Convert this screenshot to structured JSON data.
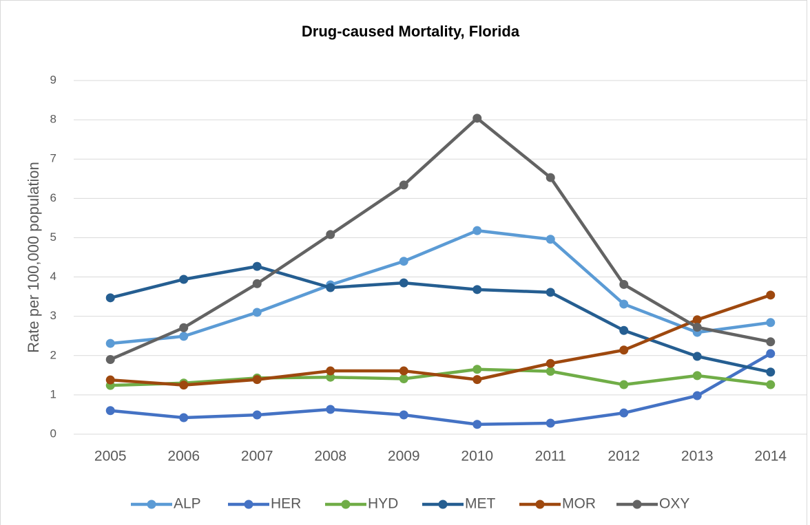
{
  "chart_data": {
    "type": "line",
    "title": "Drug-caused Mortality, Florida",
    "y_label": "Rate per 100,000 population",
    "categories": [
      "2005",
      "2006",
      "2007",
      "2008",
      "2009",
      "2010",
      "2011",
      "2012",
      "2013",
      "2014"
    ],
    "series": [
      {
        "name": "ALP",
        "color": "#5b9bd5",
        "values": [
          2.31,
          2.49,
          3.1,
          3.8,
          4.4,
          5.18,
          4.96,
          3.31,
          2.59,
          2.84
        ]
      },
      {
        "name": "HER",
        "color": "#4472c4",
        "values": [
          0.6,
          0.42,
          0.49,
          0.63,
          0.49,
          0.25,
          0.28,
          0.54,
          0.98,
          2.05
        ]
      },
      {
        "name": "HYD",
        "color": "#70ad47",
        "values": [
          1.24,
          1.3,
          1.43,
          1.45,
          1.41,
          1.65,
          1.6,
          1.26,
          1.49,
          1.26
        ]
      },
      {
        "name": "MET",
        "color": "#255e91",
        "values": [
          3.47,
          3.94,
          4.27,
          3.73,
          3.85,
          3.68,
          3.61,
          2.64,
          1.98,
          1.58
        ]
      },
      {
        "name": "MOR",
        "color": "#9e480e",
        "values": [
          1.38,
          1.25,
          1.39,
          1.61,
          1.61,
          1.39,
          1.8,
          2.14,
          2.91,
          3.54
        ]
      },
      {
        "name": "OXY",
        "color": "#636363",
        "values": [
          1.9,
          2.71,
          3.83,
          5.08,
          6.34,
          8.04,
          6.53,
          3.81,
          2.72,
          2.35
        ]
      }
    ],
    "ylim": [
      0,
      9
    ],
    "yticks": [
      0,
      1,
      2,
      3,
      4,
      5,
      6,
      7,
      8,
      9
    ],
    "grid": true,
    "legend": "bottom"
  }
}
